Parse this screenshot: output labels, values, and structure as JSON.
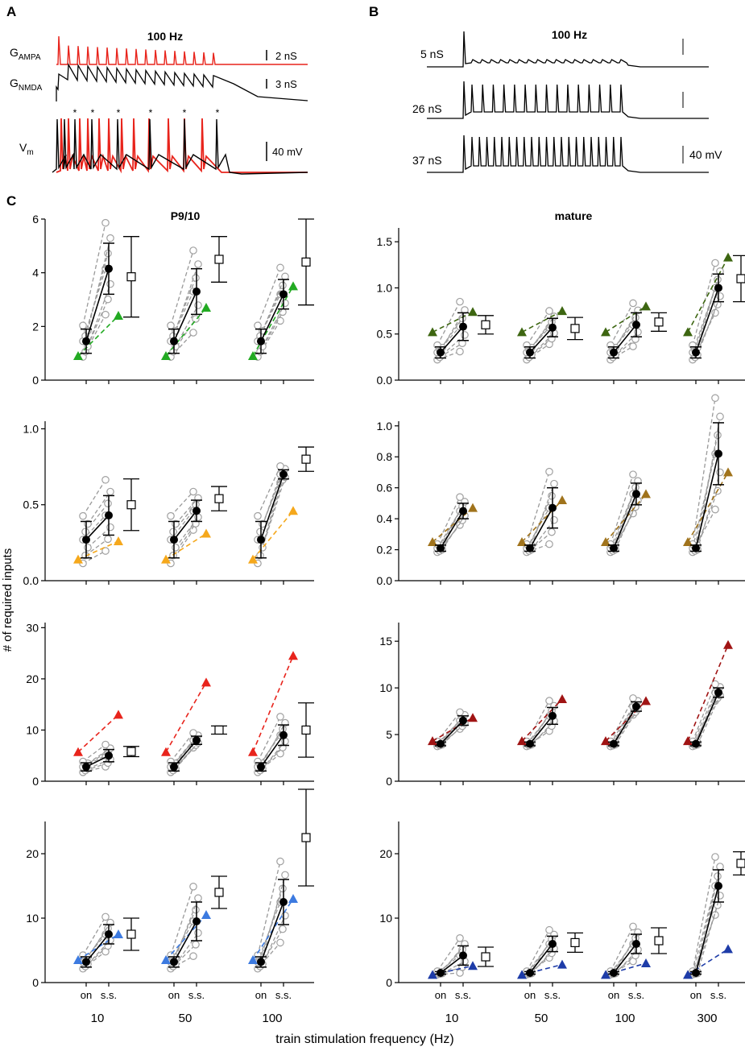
{
  "panels": {
    "a": "A",
    "b": "B",
    "c": "C"
  },
  "top_a": {
    "title": "100 Hz",
    "traces": [
      {
        "label_main": "G",
        "label_sub": "AMPA",
        "scale": "2 nS"
      },
      {
        "label_main": "G",
        "label_sub": "NMDA",
        "scale": "3 nS"
      },
      {
        "label_main": "V",
        "label_sub": "m",
        "scale": "40 mV"
      }
    ],
    "star": "*",
    "colors": {
      "red": "#e8241c",
      "black": "#000000"
    }
  },
  "top_b": {
    "title": "100 Hz",
    "traces": [
      {
        "label": "5 nS"
      },
      {
        "label": "26 nS"
      },
      {
        "label": "37 nS"
      }
    ],
    "scale": "40 mV"
  },
  "chart_data": {
    "type": "scatter",
    "ylabel": "# of required inputs",
    "xlabel": "train stimulation frequency (Hz)",
    "column_titles": [
      "P9/10",
      "mature"
    ],
    "x_tick_sub": [
      "on",
      "s.s."
    ],
    "x_groups": {
      "P9/10": [
        "10",
        "50",
        "100"
      ],
      "mature": [
        "10",
        "50",
        "100",
        "300"
      ]
    },
    "panels": [
      {
        "id": "r1-left",
        "ylim": [
          0,
          6
        ],
        "yticks": [
          "0",
          "2",
          "4",
          "6"
        ],
        "tri_color": "#22aa22",
        "groups": [
          {
            "freq": "10",
            "on": 1.45,
            "on_err": 0.45,
            "ss": 4.15,
            "ss_err": 0.95,
            "tri_on": 0.9,
            "tri_ss": 2.4,
            "box": 3.85,
            "box_err": 1.5
          },
          {
            "freq": "50",
            "on": 1.45,
            "on_err": 0.45,
            "ss": 3.3,
            "ss_err": 0.85,
            "tri_on": 0.9,
            "tri_ss": 2.7,
            "box": 4.5,
            "box_err": 0.85
          },
          {
            "freq": "100",
            "on": 1.45,
            "on_err": 0.45,
            "ss": 3.2,
            "ss_err": 0.55,
            "tri_on": 0.9,
            "tri_ss": 3.5,
            "box": 4.4,
            "box_err": 1.6
          }
        ]
      },
      {
        "id": "r1-right",
        "ylim": [
          0,
          1.65
        ],
        "yticks": [
          "0.0",
          "0.5",
          "1.0",
          "1.5"
        ],
        "tri_color": "#3d6611",
        "groups": [
          {
            "freq": "10",
            "on": 0.3,
            "on_err": 0.06,
            "ss": 0.58,
            "ss_err": 0.15,
            "tri_on": 0.52,
            "tri_ss": 0.74,
            "box": 0.6,
            "box_err": 0.1
          },
          {
            "freq": "50",
            "on": 0.3,
            "on_err": 0.06,
            "ss": 0.57,
            "ss_err": 0.1,
            "tri_on": 0.52,
            "tri_ss": 0.75,
            "box": 0.56,
            "box_err": 0.12
          },
          {
            "freq": "100",
            "on": 0.3,
            "on_err": 0.06,
            "ss": 0.6,
            "ss_err": 0.13,
            "tri_on": 0.52,
            "tri_ss": 0.8,
            "box": 0.63,
            "box_err": 0.1
          },
          {
            "freq": "300",
            "on": 0.3,
            "on_err": 0.06,
            "ss": 1.0,
            "ss_err": 0.15,
            "tri_on": 0.52,
            "tri_ss": 1.33,
            "box": 1.1,
            "box_err": 0.25
          }
        ]
      },
      {
        "id": "r2-left",
        "ylim": [
          0,
          1.05
        ],
        "yticks": [
          "0.0",
          "0.5",
          "1.0"
        ],
        "tri_color": "#f5a81c",
        "groups": [
          {
            "freq": "10",
            "on": 0.27,
            "on_err": 0.12,
            "ss": 0.43,
            "ss_err": 0.13,
            "tri_on": 0.14,
            "tri_ss": 0.26,
            "box": 0.5,
            "box_err": 0.17
          },
          {
            "freq": "50",
            "on": 0.27,
            "on_err": 0.12,
            "ss": 0.46,
            "ss_err": 0.07,
            "tri_on": 0.14,
            "tri_ss": 0.31,
            "box": 0.54,
            "box_err": 0.08
          },
          {
            "freq": "100",
            "on": 0.27,
            "on_err": 0.12,
            "ss": 0.7,
            "ss_err": 0.03,
            "tri_on": 0.14,
            "tri_ss": 0.46,
            "box": 0.8,
            "box_err": 0.08
          }
        ]
      },
      {
        "id": "r2-right",
        "ylim": [
          0,
          1.03
        ],
        "yticks": [
          "0.0",
          "0.2",
          "0.4",
          "0.6",
          "0.8",
          "1.0"
        ],
        "tri_color": "#a0731c",
        "groups": [
          {
            "freq": "10",
            "on": 0.21,
            "on_err": 0.02,
            "ss": 0.45,
            "ss_err": 0.05,
            "tri_on": 0.25,
            "tri_ss": 0.47,
            "box": null,
            "box_err": null
          },
          {
            "freq": "50",
            "on": 0.21,
            "on_err": 0.02,
            "ss": 0.47,
            "ss_err": 0.13,
            "tri_on": 0.25,
            "tri_ss": 0.52,
            "box": null,
            "box_err": null
          },
          {
            "freq": "100",
            "on": 0.21,
            "on_err": 0.02,
            "ss": 0.56,
            "ss_err": 0.07,
            "tri_on": 0.25,
            "tri_ss": 0.56,
            "box": null,
            "box_err": null
          },
          {
            "freq": "300",
            "on": 0.21,
            "on_err": 0.02,
            "ss": 0.82,
            "ss_err": 0.2,
            "tri_on": 0.25,
            "tri_ss": 0.7,
            "box": null,
            "box_err": null
          }
        ]
      },
      {
        "id": "r3-left",
        "ylim": [
          0,
          31
        ],
        "yticks": [
          "0",
          "10",
          "20",
          "30"
        ],
        "tri_color": "#e8241c",
        "groups": [
          {
            "freq": "10",
            "on": 2.8,
            "on_err": 0.8,
            "ss": 5.0,
            "ss_err": 1.2,
            "tri_on": 5.7,
            "tri_ss": 13.0,
            "box": 5.8,
            "box_err": 1.0
          },
          {
            "freq": "50",
            "on": 2.8,
            "on_err": 0.8,
            "ss": 8.0,
            "ss_err": 0.8,
            "tri_on": 5.7,
            "tri_ss": 19.3,
            "box": 10.0,
            "box_err": 0.8
          },
          {
            "freq": "100",
            "on": 2.8,
            "on_err": 0.8,
            "ss": 9.0,
            "ss_err": 2.0,
            "tri_on": 5.7,
            "tri_ss": 24.5,
            "box": 10.0,
            "box_err": 5.3
          }
        ]
      },
      {
        "id": "r3-right",
        "ylim": [
          0,
          17
        ],
        "yticks": [
          "0",
          "5",
          "10",
          "15"
        ],
        "tri_color": "#a01414",
        "groups": [
          {
            "freq": "10",
            "on": 4.0,
            "on_err": 0.2,
            "ss": 6.5,
            "ss_err": 0.5,
            "tri_on": 4.3,
            "tri_ss": 6.8,
            "box": null,
            "box_err": null
          },
          {
            "freq": "50",
            "on": 4.0,
            "on_err": 0.2,
            "ss": 7.0,
            "ss_err": 0.9,
            "tri_on": 4.3,
            "tri_ss": 8.8,
            "box": null,
            "box_err": null
          },
          {
            "freq": "100",
            "on": 4.0,
            "on_err": 0.2,
            "ss": 8.0,
            "ss_err": 0.5,
            "tri_on": 4.3,
            "tri_ss": 8.6,
            "box": null,
            "box_err": null
          },
          {
            "freq": "300",
            "on": 4.0,
            "on_err": 0.2,
            "ss": 9.5,
            "ss_err": 0.5,
            "tri_on": 4.3,
            "tri_ss": 14.6,
            "box": null,
            "box_err": null
          }
        ]
      },
      {
        "id": "r4-left",
        "ylim": [
          0,
          25
        ],
        "yticks": [
          "0",
          "10",
          "20"
        ],
        "tri_color": "#3c7ae0",
        "groups": [
          {
            "freq": "10",
            "on": 3.2,
            "on_err": 0.8,
            "ss": 7.5,
            "ss_err": 1.5,
            "tri_on": 3.5,
            "tri_ss": 7.5,
            "box": 7.5,
            "box_err": 2.5
          },
          {
            "freq": "50",
            "on": 3.2,
            "on_err": 0.8,
            "ss": 9.5,
            "ss_err": 3.0,
            "tri_on": 3.5,
            "tri_ss": 10.5,
            "box": 14.0,
            "box_err": 2.5
          },
          {
            "freq": "100",
            "on": 3.2,
            "on_err": 0.8,
            "ss": 12.5,
            "ss_err": 3.5,
            "tri_on": 3.5,
            "tri_ss": 13.0,
            "box": 22.5,
            "box_err": 7.5
          }
        ]
      },
      {
        "id": "r4-right",
        "ylim": [
          0,
          25
        ],
        "yticks": [
          "0",
          "10",
          "20"
        ],
        "tri_color": "#1e3ca8",
        "groups": [
          {
            "freq": "10",
            "on": 1.5,
            "on_err": 0.2,
            "ss": 4.2,
            "ss_err": 1.5,
            "tri_on": 1.2,
            "tri_ss": 2.6,
            "box": 4.0,
            "box_err": 1.5
          },
          {
            "freq": "50",
            "on": 1.5,
            "on_err": 0.2,
            "ss": 6.0,
            "ss_err": 1.2,
            "tri_on": 1.2,
            "tri_ss": 2.8,
            "box": 6.2,
            "box_err": 1.5
          },
          {
            "freq": "100",
            "on": 1.5,
            "on_err": 0.2,
            "ss": 6.0,
            "ss_err": 1.5,
            "tri_on": 1.2,
            "tri_ss": 3.0,
            "box": 6.5,
            "box_err": 2.0
          },
          {
            "freq": "300",
            "on": 1.5,
            "on_err": 0.2,
            "ss": 15.0,
            "ss_err": 2.5,
            "tri_on": 1.2,
            "tri_ss": 5.2,
            "box": 18.5,
            "box_err": 1.8
          }
        ]
      }
    ]
  }
}
